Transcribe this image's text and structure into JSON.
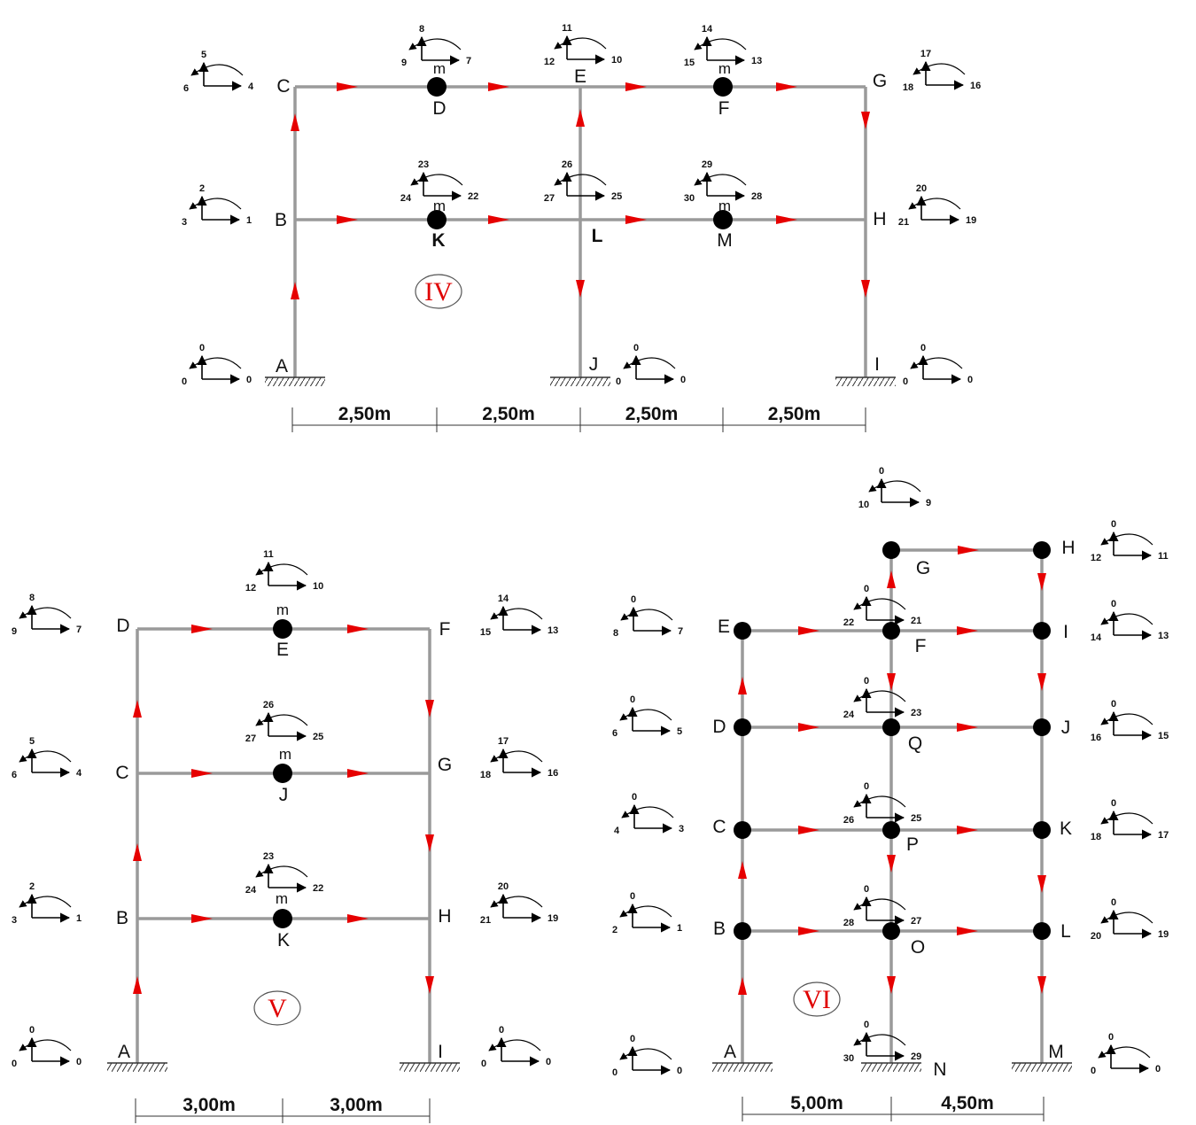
{
  "frames": [
    {
      "id": "IV",
      "label": "IV",
      "nodes": [
        {
          "key": "A",
          "label": "A"
        },
        {
          "key": "B",
          "label": "B"
        },
        {
          "key": "C",
          "label": "C"
        },
        {
          "key": "D",
          "label": "D"
        },
        {
          "key": "E",
          "label": "E"
        },
        {
          "key": "F",
          "label": "F"
        },
        {
          "key": "G",
          "label": "G"
        },
        {
          "key": "H",
          "label": "H"
        },
        {
          "key": "I",
          "label": "I"
        },
        {
          "key": "J",
          "label": "J"
        },
        {
          "key": "K",
          "label": "K"
        },
        {
          "key": "L",
          "label": "L"
        },
        {
          "key": "M",
          "label": "M"
        }
      ],
      "mass_label": "m",
      "dof_groups": [
        [
          "4",
          "5",
          "6"
        ],
        [
          "7",
          "8",
          "9"
        ],
        [
          "10",
          "11",
          "12"
        ],
        [
          "13",
          "14",
          "15"
        ],
        [
          "16",
          "17",
          "18"
        ],
        [
          "1",
          "2",
          "3"
        ],
        [
          "22",
          "23",
          "24"
        ],
        [
          "25",
          "26",
          "27"
        ],
        [
          "28",
          "29",
          "30"
        ],
        [
          "19",
          "20",
          "21"
        ],
        [
          "0",
          "0",
          "0"
        ],
        [
          "0",
          "0",
          "0"
        ],
        [
          "0",
          "0",
          "0"
        ]
      ],
      "spans": [
        "2,50m",
        "2,50m",
        "2,50m",
        "2,50m"
      ]
    },
    {
      "id": "V",
      "label": "V",
      "nodes": [
        {
          "key": "A",
          "label": "A"
        },
        {
          "key": "B",
          "label": "B"
        },
        {
          "key": "C",
          "label": "C"
        },
        {
          "key": "D",
          "label": "D"
        },
        {
          "key": "E",
          "label": "E"
        },
        {
          "key": "F",
          "label": "F"
        },
        {
          "key": "G",
          "label": "G"
        },
        {
          "key": "H",
          "label": "H"
        },
        {
          "key": "I",
          "label": "I"
        },
        {
          "key": "J",
          "label": "J"
        },
        {
          "key": "K",
          "label": "K"
        }
      ],
      "mass_label": "m",
      "dof_groups": [
        [
          "7",
          "8",
          "9"
        ],
        [
          "10",
          "11",
          "12"
        ],
        [
          "13",
          "14",
          "15"
        ],
        [
          "4",
          "5",
          "6"
        ],
        [
          "25",
          "26",
          "27"
        ],
        [
          "16",
          "17",
          "18"
        ],
        [
          "1",
          "2",
          "3"
        ],
        [
          "22",
          "23",
          "24"
        ],
        [
          "19",
          "20",
          "21"
        ],
        [
          "0",
          "0",
          "0"
        ],
        [
          "0",
          "0",
          "0"
        ]
      ],
      "spans": [
        "3,00m",
        "3,00m"
      ]
    },
    {
      "id": "VI",
      "label": "VI",
      "nodes": [
        {
          "key": "A",
          "label": "A"
        },
        {
          "key": "B",
          "label": "B"
        },
        {
          "key": "C",
          "label": "C"
        },
        {
          "key": "D",
          "label": "D"
        },
        {
          "key": "E",
          "label": "E"
        },
        {
          "key": "F",
          "label": "F"
        },
        {
          "key": "G",
          "label": "G"
        },
        {
          "key": "H",
          "label": "H"
        },
        {
          "key": "I",
          "label": "I"
        },
        {
          "key": "J",
          "label": "J"
        },
        {
          "key": "K",
          "label": "K"
        },
        {
          "key": "L",
          "label": "L"
        },
        {
          "key": "M",
          "label": "M"
        },
        {
          "key": "N",
          "label": "N"
        },
        {
          "key": "O",
          "label": "O"
        },
        {
          "key": "P",
          "label": "P"
        },
        {
          "key": "Q",
          "label": "Q"
        }
      ],
      "dof_groups": [
        [
          "9",
          "0",
          "10"
        ],
        [
          "11",
          "0",
          "12"
        ],
        [
          "7",
          "0",
          "8"
        ],
        [
          "21",
          "0",
          "22"
        ],
        [
          "13",
          "0",
          "14"
        ],
        [
          "5",
          "0",
          "6"
        ],
        [
          "23",
          "0",
          "24"
        ],
        [
          "15",
          "0",
          "16"
        ],
        [
          "3",
          "0",
          "4"
        ],
        [
          "25",
          "0",
          "26"
        ],
        [
          "17",
          "0",
          "18"
        ],
        [
          "1",
          "0",
          "2"
        ],
        [
          "27",
          "0",
          "28"
        ],
        [
          "19",
          "0",
          "20"
        ],
        [
          "0",
          "0",
          "0"
        ],
        [
          "29",
          "0",
          "30"
        ],
        [
          "0",
          "0",
          "0"
        ]
      ],
      "spans": [
        "5,00m",
        "4,50m"
      ]
    }
  ]
}
